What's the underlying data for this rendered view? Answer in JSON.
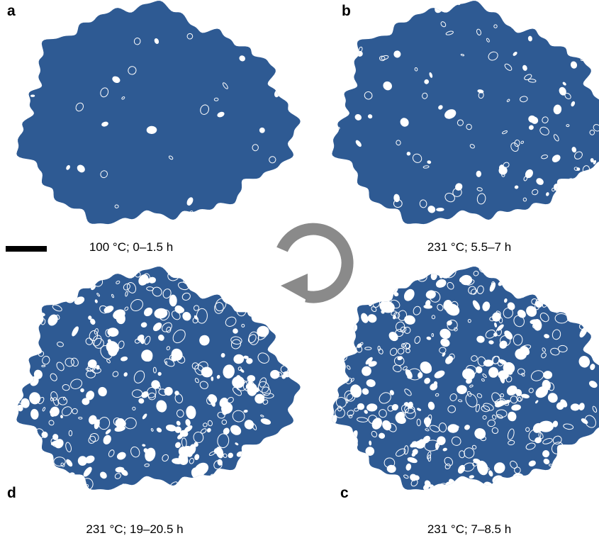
{
  "panels": [
    {
      "label": "a",
      "caption": "100 °C; 0–1.5 h"
    },
    {
      "label": "b",
      "caption": "231 °C; 5.5–7 h"
    },
    {
      "label": "d",
      "caption": "231 °C; 19–20.5 h"
    },
    {
      "label": "c",
      "caption": "231 °C; 7–8.5 h"
    }
  ]
}
